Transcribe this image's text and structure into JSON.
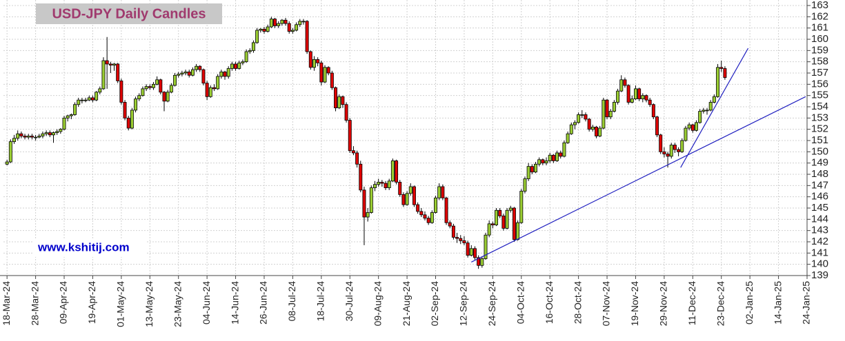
{
  "chart_data": {
    "type": "candlestick",
    "title": "USD-JPY Daily Candles",
    "annotation": "www.kshitij.com",
    "up_color": "#9acd32",
    "down_color": "#e00000",
    "grid": true,
    "ylim": [
      139,
      163
    ],
    "yticks": [
      139,
      140,
      141,
      142,
      143,
      144,
      145,
      146,
      147,
      148,
      149,
      150,
      151,
      152,
      153,
      154,
      155,
      156,
      157,
      158,
      159,
      160,
      161,
      162,
      163
    ],
    "xlim": [
      -1,
      224
    ],
    "xticks": [
      {
        "value": 0,
        "label": "18-Mar-24"
      },
      {
        "value": 8,
        "label": "28-Mar-24"
      },
      {
        "value": 16,
        "label": "09-Apr-24"
      },
      {
        "value": 24,
        "label": "19-Apr-24"
      },
      {
        "value": 32,
        "label": "01-May-24"
      },
      {
        "value": 40,
        "label": "13-May-24"
      },
      {
        "value": 48,
        "label": "23-May-24"
      },
      {
        "value": 56,
        "label": "04-Jun-24"
      },
      {
        "value": 64,
        "label": "14-Jun-24"
      },
      {
        "value": 72,
        "label": "26-Jun-24"
      },
      {
        "value": 80,
        "label": "08-Jul-24"
      },
      {
        "value": 88,
        "label": "18-Jul-24"
      },
      {
        "value": 96,
        "label": "30-Jul-24"
      },
      {
        "value": 104,
        "label": "09-Aug-24"
      },
      {
        "value": 112,
        "label": "21-Aug-24"
      },
      {
        "value": 120,
        "label": "02-Sep-24"
      },
      {
        "value": 128,
        "label": "12-Sep-24"
      },
      {
        "value": 136,
        "label": "24-Sep-24"
      },
      {
        "value": 144,
        "label": "04-Oct-24"
      },
      {
        "value": 152,
        "label": "16-Oct-24"
      },
      {
        "value": 160,
        "label": "28-Oct-24"
      },
      {
        "value": 168,
        "label": "07-Nov-24"
      },
      {
        "value": 176,
        "label": "19-Nov-24"
      },
      {
        "value": 184,
        "label": "29-Nov-24"
      },
      {
        "value": 192,
        "label": "11-Dec-24"
      },
      {
        "value": 200,
        "label": "23-Dec-24"
      },
      {
        "value": 208,
        "label": "02-Jan-25"
      },
      {
        "value": 216,
        "label": "14-Jan-25"
      },
      {
        "value": 224,
        "label": "24-Jan-25"
      }
    ],
    "trendlines": [
      {
        "color": "#2020c0",
        "x": [
          130,
          223.6
        ],
        "y": [
          140.2,
          154.9
        ]
      },
      {
        "color": "#2020c0",
        "x": [
          188.6,
          207.5
        ],
        "y": [
          148.6,
          159.2
        ]
      }
    ],
    "ohlc": [
      [
        148.9,
        149.3,
        148.8,
        149.1
      ],
      [
        149.1,
        151.1,
        149.0,
        150.9
      ],
      [
        150.9,
        151.5,
        150.7,
        151.2
      ],
      [
        151.2,
        151.9,
        151.0,
        151.6
      ],
      [
        151.6,
        151.8,
        151.2,
        151.4
      ],
      [
        151.4,
        151.6,
        151.1,
        151.3
      ],
      [
        151.3,
        151.6,
        151.1,
        151.4
      ],
      [
        151.4,
        151.6,
        151.1,
        151.3
      ],
      [
        151.3,
        151.5,
        151.0,
        151.3
      ],
      [
        151.3,
        151.6,
        151.2,
        151.4
      ],
      [
        151.4,
        151.8,
        151.2,
        151.6
      ],
      [
        151.6,
        151.9,
        151.4,
        151.7
      ],
      [
        151.7,
        151.9,
        151.3,
        151.5
      ],
      [
        151.5,
        151.8,
        150.8,
        151.7
      ],
      [
        151.7,
        152.0,
        151.5,
        151.8
      ],
      [
        151.8,
        152.1,
        151.6,
        152.0
      ],
      [
        152.0,
        153.2,
        151.9,
        153.0
      ],
      [
        153.0,
        153.3,
        152.7,
        153.2
      ],
      [
        153.2,
        153.4,
        152.9,
        153.3
      ],
      [
        153.3,
        154.4,
        153.2,
        154.2
      ],
      [
        154.2,
        154.8,
        154.0,
        154.6
      ],
      [
        154.6,
        154.8,
        154.3,
        154.6
      ],
      [
        154.6,
        154.8,
        154.4,
        154.6
      ],
      [
        154.6,
        155.0,
        154.5,
        154.8
      ],
      [
        154.8,
        155.0,
        154.4,
        154.6
      ],
      [
        154.6,
        155.4,
        154.5,
        155.3
      ],
      [
        155.3,
        155.8,
        155.1,
        155.6
      ],
      [
        155.6,
        158.4,
        155.5,
        158.1
      ],
      [
        158.1,
        160.2,
        155.6,
        157.8
      ],
      [
        157.8,
        158.0,
        157.0,
        157.7
      ],
      [
        157.7,
        157.9,
        157.2,
        157.8
      ],
      [
        157.8,
        157.9,
        156.1,
        156.3
      ],
      [
        156.3,
        156.5,
        154.2,
        154.4
      ],
      [
        154.4,
        154.6,
        152.8,
        153.0
      ],
      [
        153.0,
        153.2,
        151.9,
        152.1
      ],
      [
        152.1,
        153.9,
        152.0,
        153.7
      ],
      [
        153.7,
        154.9,
        153.5,
        154.7
      ],
      [
        154.7,
        155.2,
        154.5,
        155.0
      ],
      [
        155.0,
        155.8,
        154.9,
        155.6
      ],
      [
        155.6,
        156.0,
        155.4,
        155.8
      ],
      [
        155.8,
        156.0,
        155.5,
        155.7
      ],
      [
        155.7,
        156.2,
        155.5,
        156.0
      ],
      [
        156.0,
        156.7,
        155.9,
        156.4
      ],
      [
        156.4,
        156.5,
        155.1,
        155.3
      ],
      [
        155.3,
        155.4,
        153.6,
        154.5
      ],
      [
        154.5,
        155.5,
        154.4,
        155.3
      ],
      [
        155.3,
        156.1,
        155.2,
        155.9
      ],
      [
        155.9,
        157.0,
        155.8,
        156.8
      ],
      [
        156.8,
        157.1,
        156.6,
        156.9
      ],
      [
        156.9,
        157.2,
        156.7,
        157.0
      ],
      [
        157.0,
        157.3,
        156.8,
        157.1
      ],
      [
        157.1,
        157.3,
        156.6,
        156.8
      ],
      [
        156.8,
        157.5,
        156.7,
        157.3
      ],
      [
        157.3,
        157.8,
        157.1,
        157.6
      ],
      [
        157.6,
        157.7,
        157.1,
        157.3
      ],
      [
        157.3,
        157.4,
        155.9,
        156.1
      ],
      [
        156.1,
        156.3,
        154.6,
        154.9
      ],
      [
        154.9,
        155.9,
        154.8,
        155.7
      ],
      [
        155.7,
        156.0,
        155.4,
        155.6
      ],
      [
        155.6,
        156.9,
        155.5,
        156.7
      ],
      [
        156.7,
        157.3,
        156.5,
        157.1
      ],
      [
        157.1,
        157.2,
        156.4,
        156.7
      ],
      [
        156.7,
        157.6,
        156.5,
        157.4
      ],
      [
        157.4,
        158.0,
        157.2,
        157.8
      ],
      [
        157.8,
        158.0,
        157.2,
        157.4
      ],
      [
        157.4,
        158.1,
        157.3,
        157.9
      ],
      [
        157.9,
        158.2,
        157.7,
        158.0
      ],
      [
        158.0,
        159.1,
        157.9,
        158.9
      ],
      [
        158.9,
        159.2,
        158.7,
        159.0
      ],
      [
        159.0,
        159.9,
        158.8,
        159.7
      ],
      [
        159.7,
        161.0,
        159.6,
        160.8
      ],
      [
        160.8,
        161.0,
        160.6,
        160.9
      ],
      [
        160.9,
        161.1,
        160.5,
        160.7
      ],
      [
        160.7,
        161.3,
        160.6,
        161.1
      ],
      [
        161.1,
        162.0,
        161.0,
        161.8
      ],
      [
        161.8,
        161.9,
        161.0,
        161.2
      ],
      [
        161.2,
        161.6,
        161.0,
        161.4
      ],
      [
        161.4,
        161.8,
        161.2,
        161.7
      ],
      [
        161.7,
        161.9,
        161.2,
        161.4
      ],
      [
        161.4,
        161.6,
        160.5,
        160.7
      ],
      [
        160.7,
        161.0,
        160.5,
        160.8
      ],
      [
        160.8,
        161.5,
        160.7,
        161.3
      ],
      [
        161.3,
        161.8,
        161.1,
        161.6
      ],
      [
        161.6,
        161.8,
        161.3,
        161.6
      ],
      [
        161.6,
        161.7,
        158.7,
        158.9
      ],
      [
        158.9,
        159.0,
        157.3,
        157.5
      ],
      [
        157.5,
        158.5,
        157.2,
        158.2
      ],
      [
        158.2,
        158.4,
        157.6,
        157.9
      ],
      [
        157.9,
        158.1,
        155.9,
        156.2
      ],
      [
        156.2,
        157.7,
        156.1,
        157.5
      ],
      [
        157.5,
        157.6,
        156.8,
        157.0
      ],
      [
        157.0,
        157.2,
        155.5,
        155.7
      ],
      [
        155.7,
        155.8,
        153.6,
        153.9
      ],
      [
        153.9,
        155.1,
        153.8,
        154.9
      ],
      [
        154.9,
        155.0,
        153.9,
        154.2
      ],
      [
        154.2,
        154.4,
        152.6,
        152.8
      ],
      [
        152.8,
        153.0,
        149.9,
        150.1
      ],
      [
        150.1,
        150.5,
        149.7,
        149.9
      ],
      [
        149.9,
        150.1,
        148.6,
        148.9
      ],
      [
        148.9,
        149.2,
        146.4,
        146.6
      ],
      [
        146.6,
        146.9,
        141.7,
        144.2
      ],
      [
        144.2,
        145.0,
        143.8,
        144.6
      ],
      [
        144.6,
        147.0,
        144.5,
        146.8
      ],
      [
        146.8,
        147.4,
        146.5,
        147.1
      ],
      [
        147.1,
        147.6,
        146.9,
        147.3
      ],
      [
        147.3,
        147.5,
        146.9,
        147.2
      ],
      [
        147.2,
        147.4,
        146.6,
        146.8
      ],
      [
        146.8,
        147.6,
        146.6,
        147.4
      ],
      [
        147.4,
        149.4,
        147.3,
        149.2
      ],
      [
        149.2,
        149.3,
        147.1,
        147.3
      ],
      [
        147.3,
        147.5,
        146.0,
        146.2
      ],
      [
        146.2,
        146.4,
        145.1,
        145.3
      ],
      [
        145.3,
        146.5,
        145.2,
        146.3
      ],
      [
        146.3,
        147.2,
        146.1,
        146.9
      ],
      [
        146.9,
        147.0,
        145.1,
        145.3
      ],
      [
        145.3,
        145.5,
        144.5,
        144.7
      ],
      [
        144.7,
        145.0,
        144.2,
        144.4
      ],
      [
        144.4,
        144.7,
        143.9,
        144.1
      ],
      [
        144.1,
        144.3,
        143.5,
        143.7
      ],
      [
        143.7,
        144.8,
        143.6,
        144.6
      ],
      [
        144.6,
        146.1,
        144.5,
        145.9
      ],
      [
        145.9,
        147.2,
        145.7,
        146.9
      ],
      [
        146.9,
        147.1,
        145.7,
        145.9
      ],
      [
        145.9,
        146.0,
        143.5,
        143.7
      ],
      [
        143.7,
        143.9,
        143.2,
        143.4
      ],
      [
        143.4,
        143.6,
        142.2,
        142.4
      ],
      [
        142.4,
        142.8,
        141.9,
        142.3
      ],
      [
        142.3,
        142.6,
        141.8,
        142.1
      ],
      [
        142.1,
        142.5,
        141.7,
        141.9
      ],
      [
        141.9,
        142.1,
        140.6,
        140.8
      ],
      [
        140.8,
        141.7,
        140.7,
        141.4
      ],
      [
        141.4,
        141.6,
        140.4,
        140.6
      ],
      [
        140.6,
        140.8,
        139.6,
        139.9
      ],
      [
        139.9,
        140.7,
        139.7,
        140.5
      ],
      [
        140.5,
        142.8,
        140.4,
        142.6
      ],
      [
        142.6,
        143.9,
        142.4,
        143.6
      ],
      [
        143.6,
        143.8,
        143.2,
        143.5
      ],
      [
        143.5,
        145.0,
        143.4,
        144.8
      ],
      [
        144.8,
        145.0,
        144.1,
        144.3
      ],
      [
        144.3,
        144.5,
        143.0,
        143.2
      ],
      [
        143.2,
        145.0,
        143.1,
        144.8
      ],
      [
        144.8,
        145.2,
        144.6,
        145.0
      ],
      [
        145.0,
        145.1,
        142.0,
        142.2
      ],
      [
        142.2,
        143.9,
        142.1,
        143.7
      ],
      [
        143.7,
        146.7,
        143.6,
        146.5
      ],
      [
        146.5,
        147.8,
        146.3,
        147.6
      ],
      [
        147.6,
        149.0,
        147.4,
        148.7
      ],
      [
        148.7,
        148.9,
        148.0,
        148.2
      ],
      [
        148.2,
        149.1,
        148.1,
        148.9
      ],
      [
        148.9,
        149.5,
        148.7,
        149.3
      ],
      [
        149.3,
        149.4,
        148.8,
        149.0
      ],
      [
        149.0,
        149.5,
        148.8,
        149.2
      ],
      [
        149.2,
        149.9,
        149.0,
        149.7
      ],
      [
        149.7,
        149.8,
        149.0,
        149.2
      ],
      [
        149.2,
        150.1,
        149.1,
        149.9
      ],
      [
        149.9,
        150.1,
        149.4,
        149.6
      ],
      [
        149.6,
        151.0,
        149.5,
        150.8
      ],
      [
        150.8,
        151.8,
        150.7,
        151.6
      ],
      [
        151.6,
        152.6,
        151.5,
        152.4
      ],
      [
        152.4,
        152.8,
        152.0,
        152.6
      ],
      [
        152.6,
        153.5,
        152.5,
        153.3
      ],
      [
        153.3,
        153.7,
        153.0,
        153.3
      ],
      [
        153.3,
        153.5,
        152.7,
        152.9
      ],
      [
        152.9,
        153.0,
        151.8,
        152.0
      ],
      [
        152.0,
        152.4,
        151.8,
        152.2
      ],
      [
        152.2,
        152.3,
        151.2,
        151.4
      ],
      [
        151.4,
        152.3,
        151.3,
        152.1
      ],
      [
        152.1,
        154.8,
        152.0,
        154.6
      ],
      [
        154.6,
        154.7,
        152.9,
        153.1
      ],
      [
        153.1,
        153.8,
        152.9,
        153.6
      ],
      [
        153.6,
        154.6,
        153.5,
        154.4
      ],
      [
        154.4,
        155.6,
        154.2,
        155.4
      ],
      [
        155.4,
        156.8,
        155.3,
        156.4
      ],
      [
        156.4,
        156.6,
        155.7,
        155.9
      ],
      [
        155.9,
        156.0,
        154.2,
        154.4
      ],
      [
        154.4,
        155.0,
        154.3,
        154.7
      ],
      [
        154.7,
        155.9,
        154.6,
        155.6
      ],
      [
        155.6,
        155.7,
        154.5,
        154.7
      ],
      [
        154.7,
        155.2,
        154.4,
        155.0
      ],
      [
        155.0,
        155.1,
        154.4,
        154.6
      ],
      [
        154.6,
        154.8,
        154.0,
        154.2
      ],
      [
        154.2,
        154.3,
        152.9,
        153.1
      ],
      [
        153.1,
        153.2,
        151.3,
        151.5
      ],
      [
        151.5,
        151.6,
        149.8,
        150.0
      ],
      [
        150.0,
        150.4,
        149.5,
        149.8
      ],
      [
        149.8,
        150.0,
        148.6,
        149.6
      ],
      [
        149.6,
        150.8,
        149.4,
        150.6
      ],
      [
        150.6,
        150.8,
        149.9,
        150.2
      ],
      [
        150.2,
        150.4,
        149.6,
        150.0
      ],
      [
        150.0,
        151.2,
        149.9,
        151.0
      ],
      [
        151.0,
        152.3,
        150.9,
        152.1
      ],
      [
        152.1,
        152.6,
        151.9,
        152.4
      ],
      [
        152.4,
        152.5,
        151.7,
        151.9
      ],
      [
        151.9,
        152.8,
        151.8,
        152.6
      ],
      [
        152.6,
        153.8,
        152.5,
        153.6
      ],
      [
        153.6,
        153.9,
        153.4,
        153.7
      ],
      [
        153.7,
        153.9,
        153.3,
        153.7
      ],
      [
        153.7,
        154.6,
        153.6,
        154.4
      ],
      [
        154.4,
        155.1,
        154.3,
        154.9
      ],
      [
        154.9,
        157.8,
        154.8,
        157.5
      ],
      [
        157.5,
        158.1,
        157.1,
        157.4
      ],
      [
        157.4,
        157.6,
        156.4,
        156.6
      ]
    ]
  }
}
